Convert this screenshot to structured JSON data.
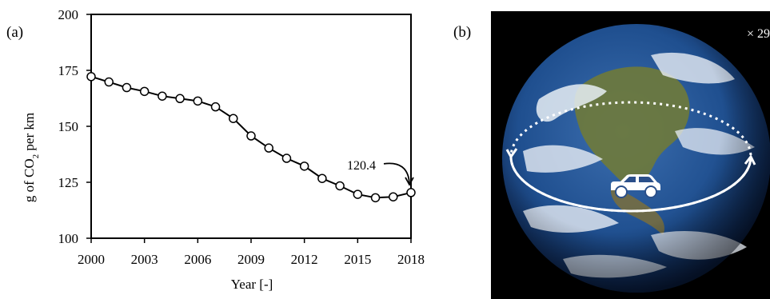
{
  "panels": {
    "a_label": "(a)",
    "b_label": "(b)"
  },
  "chart_data": {
    "type": "line",
    "x": [
      2000,
      2001,
      2002,
      2003,
      2004,
      2005,
      2006,
      2007,
      2008,
      2009,
      2010,
      2011,
      2012,
      2013,
      2014,
      2015,
      2016,
      2017,
      2018
    ],
    "values": [
      172.2,
      169.8,
      167.3,
      165.6,
      163.5,
      162.4,
      161.3,
      158.7,
      153.5,
      145.7,
      140.3,
      135.7,
      132.2,
      126.7,
      123.4,
      119.6,
      118.1,
      118.5,
      120.4
    ],
    "xlabel": "Year [-]",
    "ylabel_parts": {
      "pre": "g of CO",
      "sub": "2",
      "post": " per km"
    },
    "xlim": [
      2000,
      2018
    ],
    "ylim": [
      100,
      200
    ],
    "xticks": [
      2000,
      2003,
      2006,
      2009,
      2012,
      2015,
      2018
    ],
    "yticks": [
      100,
      125,
      150,
      175,
      200
    ],
    "grid": false,
    "annotation": {
      "text": "120.4",
      "x": 2018,
      "y": 120.4
    },
    "color": "#000000"
  },
  "image_b": {
    "multiplier": "× 29"
  },
  "colors": {
    "ocean": "#1f4f8f",
    "land": "#6f7a3a",
    "cloud": "#e8eef5",
    "background": "#000000"
  }
}
